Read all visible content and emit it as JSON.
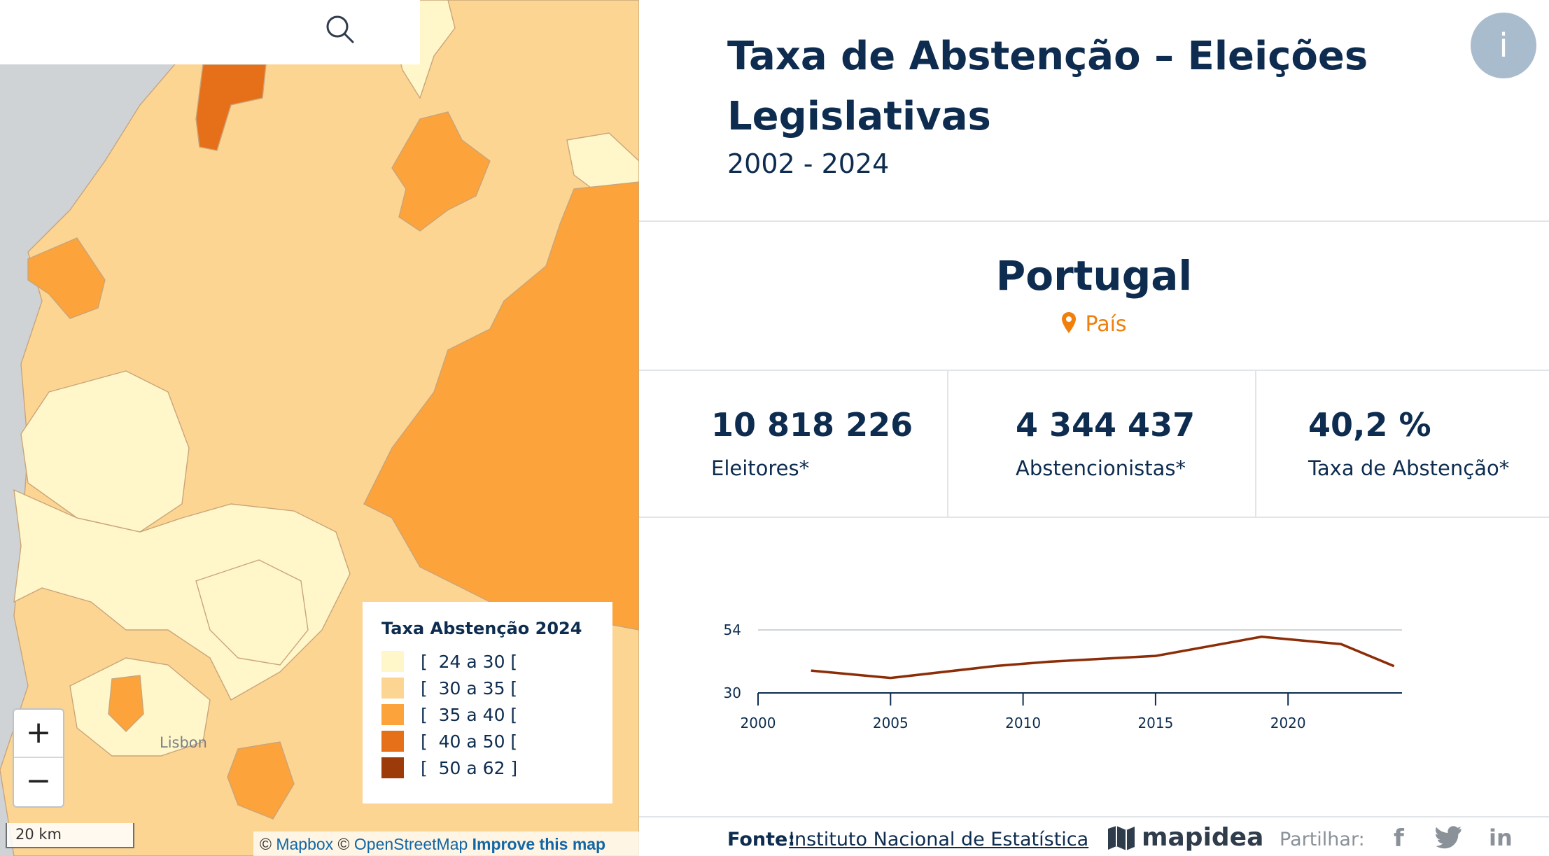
{
  "map": {
    "search_placeholder": "",
    "zoom_in_label": "+",
    "zoom_out_label": "−",
    "scale_label": "20 km",
    "city_label": "Lisbon",
    "attribution": {
      "copy1": "© ",
      "mapbox": "Mapbox",
      "copy2": " © ",
      "osm": "OpenStreetMap",
      "improve": " Improve this map"
    },
    "legend": {
      "title": "Taxa Abstenção 2024",
      "items": [
        {
          "label": "[  24 a 30 [",
          "color": "#fff7c9"
        },
        {
          "label": "[  30 a 35 [",
          "color": "#fdd593"
        },
        {
          "label": "[  35 a 40 [",
          "color": "#fca33b"
        },
        {
          "label": "[  40 a 50 [",
          "color": "#e6701a"
        },
        {
          "label": "[  50 a 62 ]",
          "color": "#9c3a0a"
        }
      ]
    }
  },
  "header": {
    "title": "Taxa de Abstenção – Eleições Legislativas",
    "period": "2002 - 2024",
    "info_label": "i"
  },
  "selection": {
    "name": "Portugal",
    "type": "País"
  },
  "stats": [
    {
      "value": "10 818 226",
      "label": "Eleitores*"
    },
    {
      "value": "4 344 437",
      "label": "Abstencionistas*"
    },
    {
      "value": "40,2 %",
      "label": "Taxa de Abstenção*"
    }
  ],
  "chart_data": {
    "type": "line",
    "x": [
      2002,
      2005,
      2009,
      2011,
      2015,
      2019,
      2022,
      2024
    ],
    "series": [
      {
        "values": [
          38.5,
          35.7,
          40.3,
          41.9,
          44.1,
          51.4,
          48.6,
          40.2
        ],
        "color": "#8c2d07"
      }
    ],
    "xticks": [
      2000,
      2005,
      2010,
      2015,
      2020
    ],
    "yticks": [
      30,
      54
    ],
    "xlim": [
      2000,
      2024.3
    ],
    "ylim": [
      30,
      54
    ],
    "grid": "horizontal at top tick"
  },
  "footer": {
    "source_label": "Fonte:",
    "source_link": "Instituto Nacional de Estatística",
    "brand": "mapidea",
    "share_label": "Partilhar:",
    "facebook": "f",
    "linkedin": "in"
  }
}
